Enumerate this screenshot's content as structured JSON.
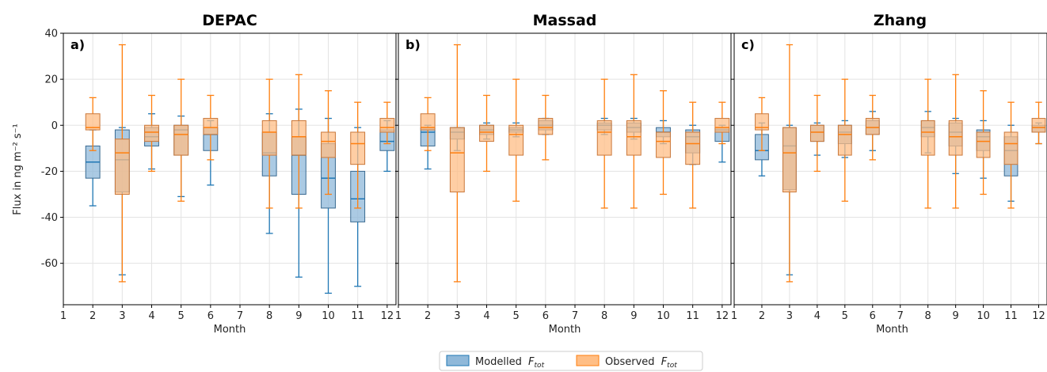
{
  "figure": {
    "ylabel": "Flux in ng m⁻² s⁻¹",
    "xlabel": "Month",
    "legend": [
      {
        "label": "Modelled",
        "sub": "tot",
        "color": "#1f77b4",
        "fill": "#8fb8d9"
      },
      {
        "label": "Observed",
        "sub": "tot",
        "color": "#ff7f0e",
        "fill": "#ffbe85"
      }
    ]
  },
  "chart_data": [
    {
      "type": "box",
      "title": "DEPAC",
      "panel_label": "a)",
      "xlabel": "Month",
      "ylabel": "Flux in ng m⁻² s⁻¹",
      "xlim": [
        1,
        12.3
      ],
      "ylim": [
        -78,
        40
      ],
      "xticks": [
        1,
        2,
        3,
        4,
        5,
        6,
        7,
        8,
        9,
        10,
        11,
        12
      ],
      "yticks": [
        -60,
        -40,
        -20,
        0,
        20,
        40
      ],
      "grid": true,
      "series": [
        {
          "name": "Modelled",
          "boxes": [
            {
              "x": 2,
              "whislo": -35,
              "q1": -23,
              "med": -16,
              "q3": -9,
              "whishi": -2
            },
            {
              "x": 3,
              "whislo": -65,
              "q1": -29,
              "med": -15,
              "q3": -2,
              "whishi": -1
            },
            {
              "x": 4,
              "whislo": -19,
              "q1": -9,
              "med": -5,
              "q3": -1,
              "whishi": 5
            },
            {
              "x": 5,
              "whislo": -31,
              "q1": -13,
              "med": -2,
              "q3": 0,
              "whishi": 4
            },
            {
              "x": 6,
              "whislo": -26,
              "q1": -11,
              "med": -4,
              "q3": -1,
              "whishi": 2
            },
            {
              "x": 8,
              "whislo": -47,
              "q1": -22,
              "med": -12,
              "q3": -3,
              "whishi": 5
            },
            {
              "x": 9,
              "whislo": -66,
              "q1": -30,
              "med": -13,
              "q3": -5,
              "whishi": 7
            },
            {
              "x": 10,
              "whislo": -73,
              "q1": -36,
              "med": -23,
              "q3": -8,
              "whishi": 3
            },
            {
              "x": 11,
              "whislo": -70,
              "q1": -42,
              "med": -32,
              "q3": -20,
              "whishi": -1
            },
            {
              "x": 12,
              "whislo": -20,
              "q1": -11,
              "med": -7,
              "q3": -2,
              "whishi": 2
            }
          ]
        },
        {
          "name": "Observed",
          "boxes": [
            {
              "x": 2,
              "whislo": -11,
              "q1": -2,
              "med": -1,
              "q3": 5,
              "whishi": 12
            },
            {
              "x": 3,
              "whislo": -68,
              "q1": -30,
              "med": -12,
              "q3": -6,
              "whishi": 35
            },
            {
              "x": 4,
              "whislo": -20,
              "q1": -7,
              "med": -3,
              "q3": 0,
              "whishi": 13
            },
            {
              "x": 5,
              "whislo": -33,
              "q1": -13,
              "med": -4,
              "q3": 0,
              "whishi": 20
            },
            {
              "x": 6,
              "whislo": -15,
              "q1": -4,
              "med": -1,
              "q3": 3,
              "whishi": 13
            },
            {
              "x": 8,
              "whislo": -36,
              "q1": -13,
              "med": -3,
              "q3": 2,
              "whishi": 20
            },
            {
              "x": 9,
              "whislo": -36,
              "q1": -13,
              "med": -5,
              "q3": 2,
              "whishi": 22
            },
            {
              "x": 10,
              "whislo": -30,
              "q1": -14,
              "med": -7,
              "q3": -3,
              "whishi": 15
            },
            {
              "x": 11,
              "whislo": -36,
              "q1": -17,
              "med": -8,
              "q3": -3,
              "whishi": 10
            },
            {
              "x": 12,
              "whislo": -8,
              "q1": -3,
              "med": -1,
              "q3": 3,
              "whishi": 10
            }
          ]
        }
      ]
    },
    {
      "type": "box",
      "title": "Massad",
      "panel_label": "b)",
      "xlabel": "Month",
      "xlim": [
        1,
        12.3
      ],
      "ylim": [
        -78,
        40
      ],
      "xticks": [
        1,
        2,
        3,
        4,
        5,
        6,
        7,
        8,
        9,
        10,
        11,
        12
      ],
      "grid": true,
      "series": [
        {
          "name": "Modelled",
          "boxes": [
            {
              "x": 2,
              "whislo": -19,
              "q1": -9,
              "med": -3,
              "q3": -1,
              "whishi": 0
            },
            {
              "x": 3,
              "whislo": -11,
              "q1": -6,
              "med": -3,
              "q3": -1,
              "whishi": -1
            },
            {
              "x": 4,
              "whislo": -6,
              "q1": -4,
              "med": -2,
              "q3": 0,
              "whishi": 1
            },
            {
              "x": 5,
              "whislo": -5,
              "q1": -3,
              "med": -2,
              "q3": -1,
              "whishi": 1
            },
            {
              "x": 6,
              "whislo": -4,
              "q1": -2,
              "med": 0,
              "q3": 2,
              "whishi": 3
            },
            {
              "x": 8,
              "whislo": -4,
              "q1": -2,
              "med": 0,
              "q3": 1,
              "whishi": 3
            },
            {
              "x": 9,
              "whislo": -6,
              "q1": -3,
              "med": -1,
              "q3": 1,
              "whishi": 3
            },
            {
              "x": 10,
              "whislo": -8,
              "q1": -5,
              "med": -3,
              "q3": -1,
              "whishi": 2
            },
            {
              "x": 11,
              "whislo": -17,
              "q1": -12,
              "med": -5,
              "q3": -2,
              "whishi": 0
            },
            {
              "x": 12,
              "whislo": -16,
              "q1": -7,
              "med": -2,
              "q3": -1,
              "whishi": 0
            }
          ]
        },
        {
          "name": "Observed",
          "boxes": [
            {
              "x": 2,
              "whislo": -11,
              "q1": -2,
              "med": -1,
              "q3": 5,
              "whishi": 12
            },
            {
              "x": 3,
              "whislo": -68,
              "q1": -29,
              "med": -12,
              "q3": -1,
              "whishi": 35
            },
            {
              "x": 4,
              "whislo": -20,
              "q1": -7,
              "med": -3,
              "q3": 0,
              "whishi": 13
            },
            {
              "x": 5,
              "whislo": -33,
              "q1": -13,
              "med": -4,
              "q3": 0,
              "whishi": 20
            },
            {
              "x": 6,
              "whislo": -15,
              "q1": -4,
              "med": -1,
              "q3": 3,
              "whishi": 13
            },
            {
              "x": 8,
              "whislo": -36,
              "q1": -13,
              "med": -3,
              "q3": 2,
              "whishi": 20
            },
            {
              "x": 9,
              "whislo": -36,
              "q1": -13,
              "med": -5,
              "q3": 2,
              "whishi": 22
            },
            {
              "x": 10,
              "whislo": -30,
              "q1": -14,
              "med": -7,
              "q3": -3,
              "whishi": 15
            },
            {
              "x": 11,
              "whislo": -36,
              "q1": -17,
              "med": -8,
              "q3": -3,
              "whishi": 10
            },
            {
              "x": 12,
              "whislo": -8,
              "q1": -3,
              "med": -1,
              "q3": 3,
              "whishi": 10
            }
          ]
        }
      ]
    },
    {
      "type": "box",
      "title": "Zhang",
      "panel_label": "c)",
      "xlabel": "Month",
      "xlim": [
        1,
        12.3
      ],
      "ylim": [
        -78,
        40
      ],
      "xticks": [
        1,
        2,
        3,
        4,
        5,
        6,
        7,
        8,
        9,
        10,
        11,
        12
      ],
      "grid": true,
      "series": [
        {
          "name": "Modelled",
          "boxes": [
            {
              "x": 2,
              "whislo": -22,
              "q1": -15,
              "med": -11,
              "q3": -4,
              "whishi": 1
            },
            {
              "x": 3,
              "whislo": -65,
              "q1": -28,
              "med": -9,
              "q3": -1,
              "whishi": 0
            },
            {
              "x": 4,
              "whislo": -13,
              "q1": -7,
              "med": -3,
              "q3": 0,
              "whishi": 1
            },
            {
              "x": 5,
              "whislo": -14,
              "q1": -8,
              "med": -3,
              "q3": 0,
              "whishi": 2
            },
            {
              "x": 6,
              "whislo": -11,
              "q1": -4,
              "med": -1,
              "q3": 2,
              "whishi": 6
            },
            {
              "x": 8,
              "whislo": -12,
              "q1": -5,
              "med": -1,
              "q3": 2,
              "whishi": 6
            },
            {
              "x": 9,
              "whislo": -21,
              "q1": -9,
              "med": -3,
              "q3": 1,
              "whishi": 3
            },
            {
              "x": 10,
              "whislo": -23,
              "q1": -11,
              "med": -5,
              "q3": -2,
              "whishi": 2
            },
            {
              "x": 11,
              "whislo": -33,
              "q1": -22,
              "med": -11,
              "q3": -5,
              "whishi": 0
            },
            {
              "x": 12,
              "whislo": -8,
              "q1": -3,
              "med": -1,
              "q3": 0,
              "whishi": 1
            }
          ]
        },
        {
          "name": "Observed",
          "boxes": [
            {
              "x": 2,
              "whislo": -11,
              "q1": -2,
              "med": -1,
              "q3": 5,
              "whishi": 12
            },
            {
              "x": 3,
              "whislo": -68,
              "q1": -29,
              "med": -12,
              "q3": -1,
              "whishi": 35
            },
            {
              "x": 4,
              "whislo": -20,
              "q1": -7,
              "med": -3,
              "q3": 0,
              "whishi": 13
            },
            {
              "x": 5,
              "whislo": -33,
              "q1": -13,
              "med": -4,
              "q3": 0,
              "whishi": 20
            },
            {
              "x": 6,
              "whislo": -15,
              "q1": -4,
              "med": -1,
              "q3": 3,
              "whishi": 13
            },
            {
              "x": 8,
              "whislo": -36,
              "q1": -13,
              "med": -3,
              "q3": 2,
              "whishi": 20
            },
            {
              "x": 9,
              "whislo": -36,
              "q1": -13,
              "med": -5,
              "q3": 2,
              "whishi": 22
            },
            {
              "x": 10,
              "whislo": -30,
              "q1": -14,
              "med": -7,
              "q3": -3,
              "whishi": 15
            },
            {
              "x": 11,
              "whislo": -36,
              "q1": -17,
              "med": -8,
              "q3": -3,
              "whishi": 10
            },
            {
              "x": 12,
              "whislo": -8,
              "q1": -3,
              "med": -1,
              "q3": 3,
              "whishi": 10
            }
          ]
        }
      ]
    }
  ]
}
